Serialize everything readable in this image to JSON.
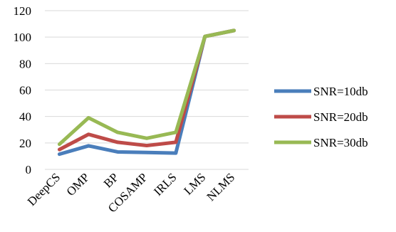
{
  "chart_data": {
    "type": "line",
    "categories": [
      "DeepCS",
      "OMP",
      "BP",
      "COSAMP",
      "IRLS",
      "LMS",
      "NLMS"
    ],
    "series": [
      {
        "name": "SNR=10db",
        "color": "#4a7ebb",
        "values": [
          11.5,
          17.8,
          13.2,
          12.8,
          12.3,
          100.5,
          105.0
        ]
      },
      {
        "name": "SNR=20db",
        "color": "#be4b48",
        "values": [
          15.0,
          26.5,
          20.5,
          18.0,
          20.5,
          100.5,
          105.0
        ]
      },
      {
        "name": "SNR=30db",
        "color": "#98b954",
        "values": [
          19.0,
          39.0,
          28.0,
          23.5,
          28.0,
          100.5,
          105.0
        ]
      }
    ],
    "ylim": [
      0,
      120
    ],
    "yticks": [
      0,
      20,
      40,
      60,
      80,
      100,
      120
    ],
    "grid": true,
    "legend": "right",
    "title": "",
    "xlabel": "",
    "ylabel": ""
  }
}
